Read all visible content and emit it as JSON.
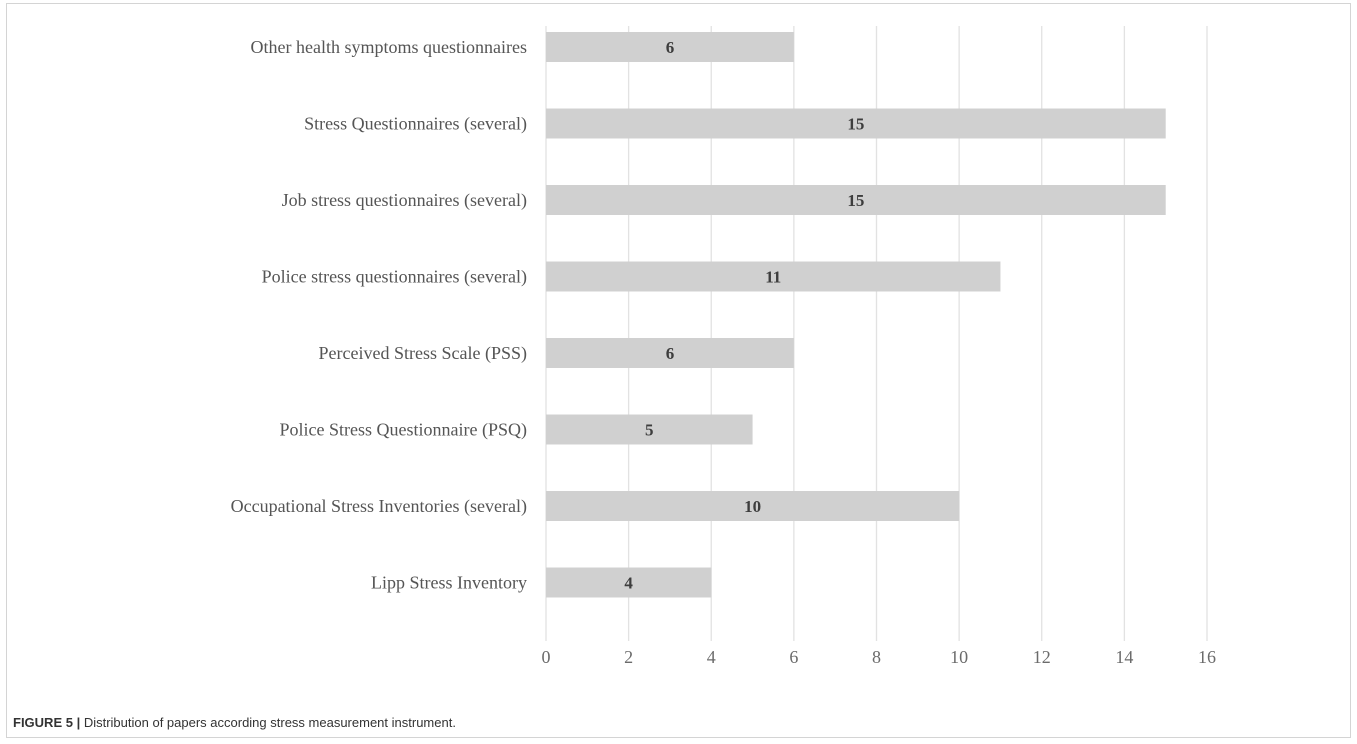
{
  "caption": {
    "label": "FIGURE 5 |",
    "text": "Distribution of papers according stress measurement instrument."
  },
  "chart_data": {
    "type": "bar",
    "orientation": "horizontal",
    "categories": [
      "Other health symptoms questionnaires",
      "Stress Questionnaires (several)",
      "Job stress questionnaires (several)",
      "Police stress questionnaires (several)",
      "Perceived Stress Scale (PSS)",
      "Police Stress Questionnaire (PSQ)",
      "Occupational Stress Inventories (several)",
      "Lipp Stress Inventory"
    ],
    "values": [
      6,
      15,
      15,
      11,
      6,
      5,
      10,
      4
    ],
    "data_labels": [
      "6",
      "15",
      "15",
      "11",
      "6",
      "5",
      "10",
      "4"
    ],
    "xlim": [
      0,
      16
    ],
    "x_ticks": [
      "0",
      "2",
      "4",
      "6",
      "8",
      "10",
      "12",
      "14",
      "16"
    ],
    "grid": true,
    "bar_color": "#d0d0d0",
    "grid_color": "#e2e2e2"
  }
}
